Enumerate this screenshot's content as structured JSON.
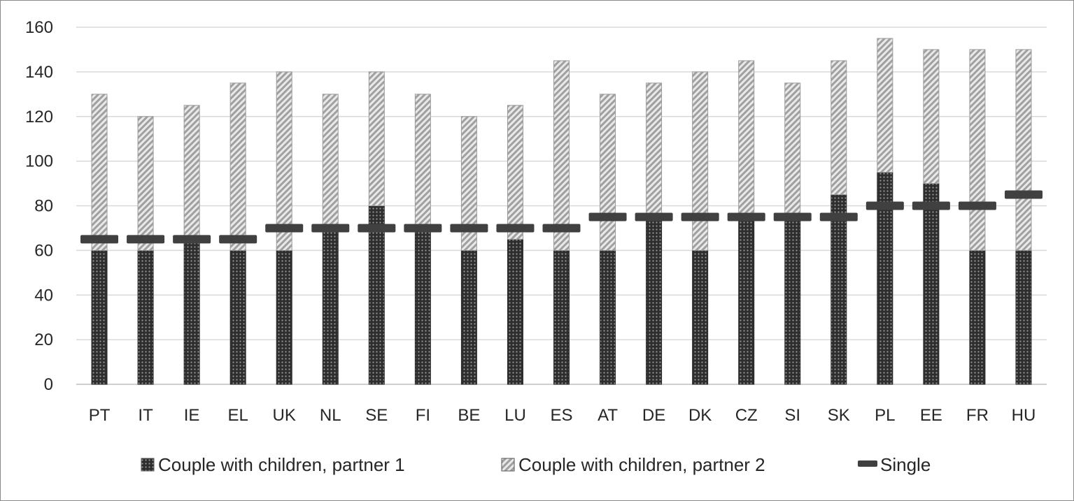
{
  "chart_data": {
    "type": "bar",
    "stacked": true,
    "title": "",
    "xlabel": "",
    "ylabel": "",
    "ylim": [
      0,
      160
    ],
    "yticks": [
      0,
      20,
      40,
      60,
      80,
      100,
      120,
      140,
      160
    ],
    "grid": true,
    "legend_position": "bottom",
    "categories": [
      "PT",
      "IT",
      "IE",
      "EL",
      "UK",
      "NL",
      "SE",
      "FI",
      "BE",
      "LU",
      "ES",
      "AT",
      "DE",
      "DK",
      "CZ",
      "SI",
      "SK",
      "PL",
      "EE",
      "FR",
      "HU"
    ],
    "series": [
      {
        "name": "Couple with children, partner 1",
        "kind": "bar",
        "pattern": "dots",
        "color": "#3a3a3a",
        "values": [
          60,
          60,
          65,
          60,
          60,
          70,
          80,
          70,
          60,
          65,
          60,
          60,
          75,
          60,
          75,
          75,
          85,
          95,
          90,
          60,
          60
        ]
      },
      {
        "name": "Couple with children, partner 2",
        "kind": "bar",
        "pattern": "diagonal-stripes",
        "color": "#a6a6a6",
        "values": [
          70,
          60,
          60,
          75,
          80,
          60,
          60,
          60,
          60,
          60,
          85,
          70,
          60,
          80,
          70,
          60,
          60,
          60,
          60,
          90,
          90
        ]
      },
      {
        "name": "Single",
        "kind": "marker",
        "pattern": "dash",
        "color": "#404040",
        "values": [
          65,
          65,
          65,
          65,
          70,
          70,
          70,
          70,
          70,
          70,
          70,
          75,
          75,
          75,
          75,
          75,
          75,
          80,
          80,
          80,
          85
        ]
      }
    ]
  }
}
